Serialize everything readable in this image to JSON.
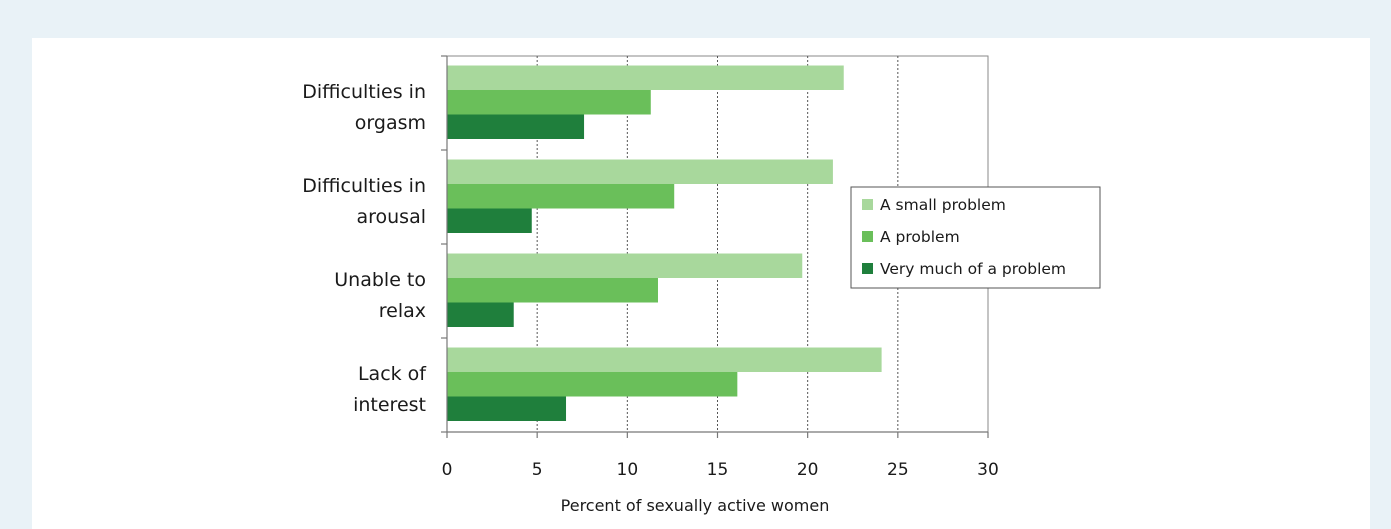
{
  "chart_data": {
    "type": "bar",
    "orientation": "horizontal",
    "categories": [
      [
        "Difficulties in",
        "orgasm"
      ],
      [
        "Difficulties in",
        "arousal"
      ],
      [
        "Unable to",
        "relax"
      ],
      [
        "Lack of",
        "interest"
      ]
    ],
    "series": [
      {
        "name": "A small problem",
        "color": "#a8d89c",
        "values": [
          22.0,
          21.4,
          19.7,
          24.1
        ]
      },
      {
        "name": "A problem",
        "color": "#6abf5a",
        "values": [
          11.3,
          12.6,
          11.7,
          16.1
        ]
      },
      {
        "name": "Very much of a problem",
        "color": "#1f7f3c",
        "values": [
          7.6,
          4.7,
          3.7,
          6.6
        ]
      }
    ],
    "xlim": [
      0,
      30
    ],
    "xticks": [
      0,
      5,
      10,
      15,
      20,
      25,
      30
    ],
    "xlabel": "Percent of sexually active women",
    "grid": "vertical dashed",
    "legend_position": "right"
  }
}
